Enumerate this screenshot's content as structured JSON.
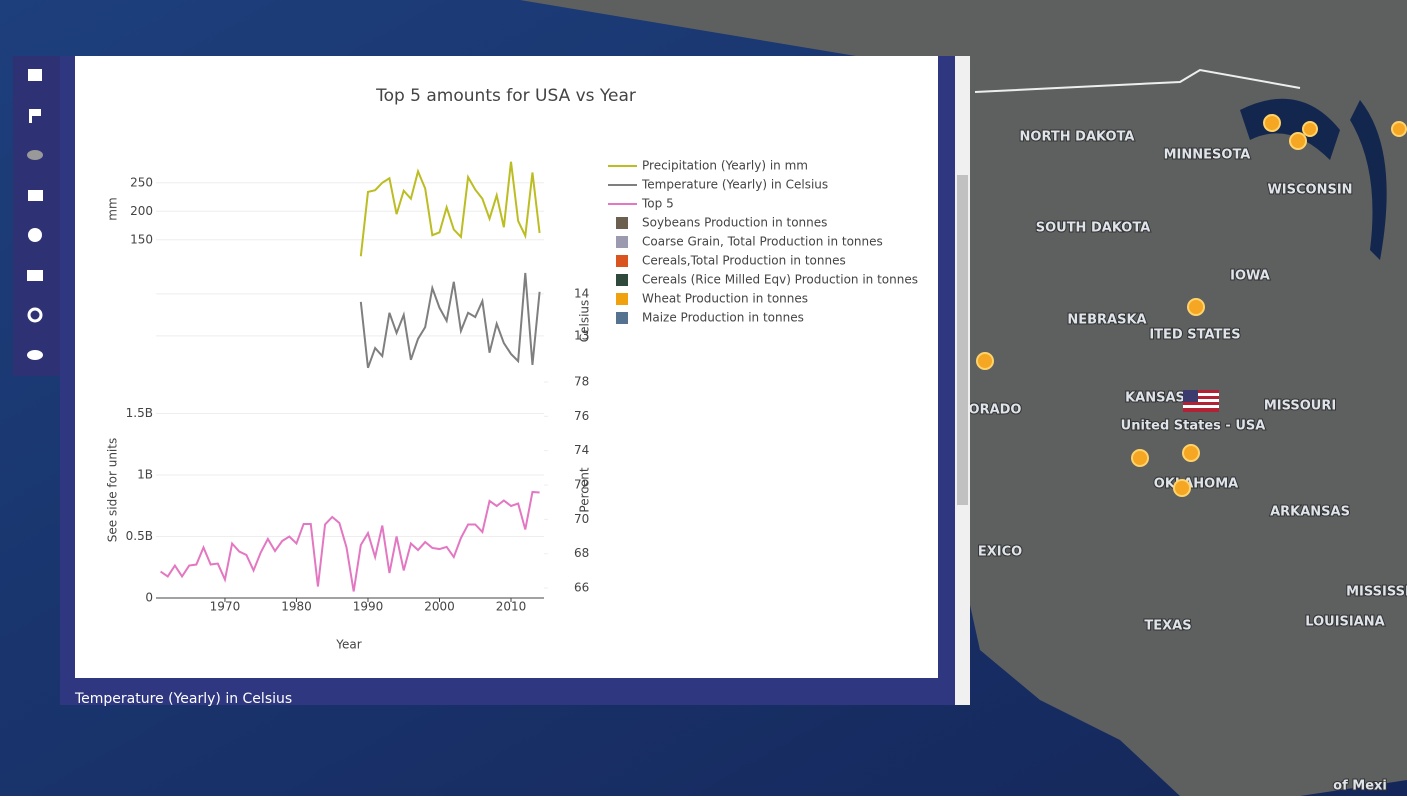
{
  "map": {
    "labels": [
      "NORTH DAKOTA",
      "MINNESOTA",
      "WISCONSIN",
      "SOUTH DAKOTA",
      "IOWA",
      "NEBRASKA",
      "ITED STATES",
      "KANSAS",
      "MISSOURI",
      "ORADO",
      "OKLAHOMA",
      "ARKANSAS",
      "EXICO",
      "TEXAS",
      "LOUISIANA",
      "MISSISSI",
      "of Mexi"
    ],
    "country_label": "United States - USA"
  },
  "caption": "Temperature (Yearly) in Celsius",
  "chart_data": {
    "type": "line",
    "title": "Top 5 amounts for USA vs Year",
    "xlabel": "Year",
    "xlim": [
      1961,
      2014
    ],
    "xticks": [
      1970,
      1980,
      1990,
      2000,
      2010
    ],
    "subplots": [
      {
        "ylabel": "mm",
        "yaxis_side": "left",
        "ylim": [
          118,
          290
        ],
        "yticks": [
          150,
          200,
          250
        ],
        "x": [
          1989,
          1990,
          1991,
          1992,
          1993,
          1994,
          1995,
          1996,
          1997,
          1998,
          1999,
          2000,
          2001,
          2002,
          2003,
          2004,
          2005,
          2006,
          2007,
          2008,
          2009,
          2010,
          2011,
          2012,
          2013,
          2014
        ],
        "series": [
          {
            "name": "Precipitation (Yearly) in mm",
            "color": "#bcbd22",
            "values": [
              121,
              234,
              237,
              250,
              258,
              195,
              236,
              222,
              270,
              240,
              158,
              163,
              207,
              168,
              155,
              260,
              238,
              222,
              187,
              228,
              172,
              287,
              183,
              157,
              268,
              162
            ]
          }
        ]
      },
      {
        "ylabel": "Celsius",
        "yaxis_side": "right",
        "ylim": [
          12.14,
          14.57
        ],
        "yticks": [
          13,
          14
        ],
        "x": [
          1989,
          1990,
          1991,
          1992,
          1993,
          1994,
          1995,
          1996,
          1997,
          1998,
          1999,
          2000,
          2001,
          2002,
          2003,
          2004,
          2005,
          2006,
          2007,
          2008,
          2009,
          2010,
          2011,
          2012,
          2013,
          2014
        ],
        "series": [
          {
            "name": "Temperature (Yearly) in Celsius",
            "color": "#7f7f7f",
            "values": [
              13.81,
              12.24,
              12.71,
              12.52,
              13.55,
              13.07,
              13.5,
              12.43,
              12.93,
              13.21,
              14.14,
              13.67,
              13.36,
              14.29,
              13.12,
              13.55,
              13.45,
              13.83,
              12.6,
              13.29,
              12.83,
              12.57,
              12.4,
              14.5,
              12.31,
              14.05
            ]
          }
        ]
      },
      {
        "ylabel": "See side for units",
        "yaxis_side": "left",
        "ylim": [
          0,
          1756000000
        ],
        "yticks": [
          0,
          {
            "value": 500000000,
            "label": "0.5B"
          },
          {
            "value": 1000000000,
            "label": "1B"
          },
          {
            "value": 1500000000,
            "label": "1.5B"
          }
        ],
        "y2label": "Percent",
        "y2lim": [
          65.42,
          78
        ],
        "y2ticks": [
          66,
          68,
          70,
          72,
          74,
          76,
          78
        ],
        "x": [
          1961,
          1962,
          1963,
          1964,
          1965,
          1966,
          1967,
          1968,
          1969,
          1970,
          1971,
          1972,
          1973,
          1974,
          1975,
          1976,
          1977,
          1978,
          1979,
          1980,
          1981,
          1982,
          1983,
          1984,
          1985,
          1986,
          1987,
          1988,
          1989,
          1990,
          1991,
          1992,
          1993,
          1994,
          1995,
          1996,
          1997,
          1998,
          1999,
          2000,
          2001,
          2002,
          2003,
          2004,
          2005,
          2006,
          2007,
          2008,
          2009,
          2010,
          2011,
          2012,
          2013,
          2014
        ],
        "series": [
          {
            "name": "Top 5",
            "color": "#e377c2",
            "values": [
              215000000,
              175000000,
              264000000,
              175000000,
              264000000,
              272000000,
              411000000,
              272000000,
              280000000,
              150000000,
              443000000,
              378000000,
              350000000,
              224000000,
              370000000,
              480000000,
              382000000,
              463000000,
              500000000,
              443000000,
              602000000,
              602000000,
              93000000,
              598000000,
              659000000,
              610000000,
              411000000,
              53000000,
              431000000,
              528000000,
              333000000,
              589000000,
              203000000,
              500000000,
              224000000,
              443000000,
              390000000,
              455000000,
              407000000,
              398000000,
              415000000,
              333000000,
              488000000,
              598000000,
              598000000,
              537000000,
              789000000,
              748000000,
              793000000,
              748000000,
              768000000,
              557000000,
              862000000,
              858000000
            ]
          }
        ]
      }
    ],
    "legend_squares": [
      {
        "name": "Soybeans Production in tonnes",
        "color": "#6b5f4f"
      },
      {
        "name": "Coarse Grain, Total Production in tonnes",
        "color": "#9c9aae"
      },
      {
        "name": "Cereals,Total Production in tonnes",
        "color": "#d9541e"
      },
      {
        "name": "Cereals (Rice Milled Eqv) Production in tonnes",
        "color": "#2f4a3d"
      },
      {
        "name": "Wheat Production in tonnes",
        "color": "#f0a10e"
      },
      {
        "name": "Maize Production in tonnes",
        "color": "#557290"
      }
    ]
  }
}
